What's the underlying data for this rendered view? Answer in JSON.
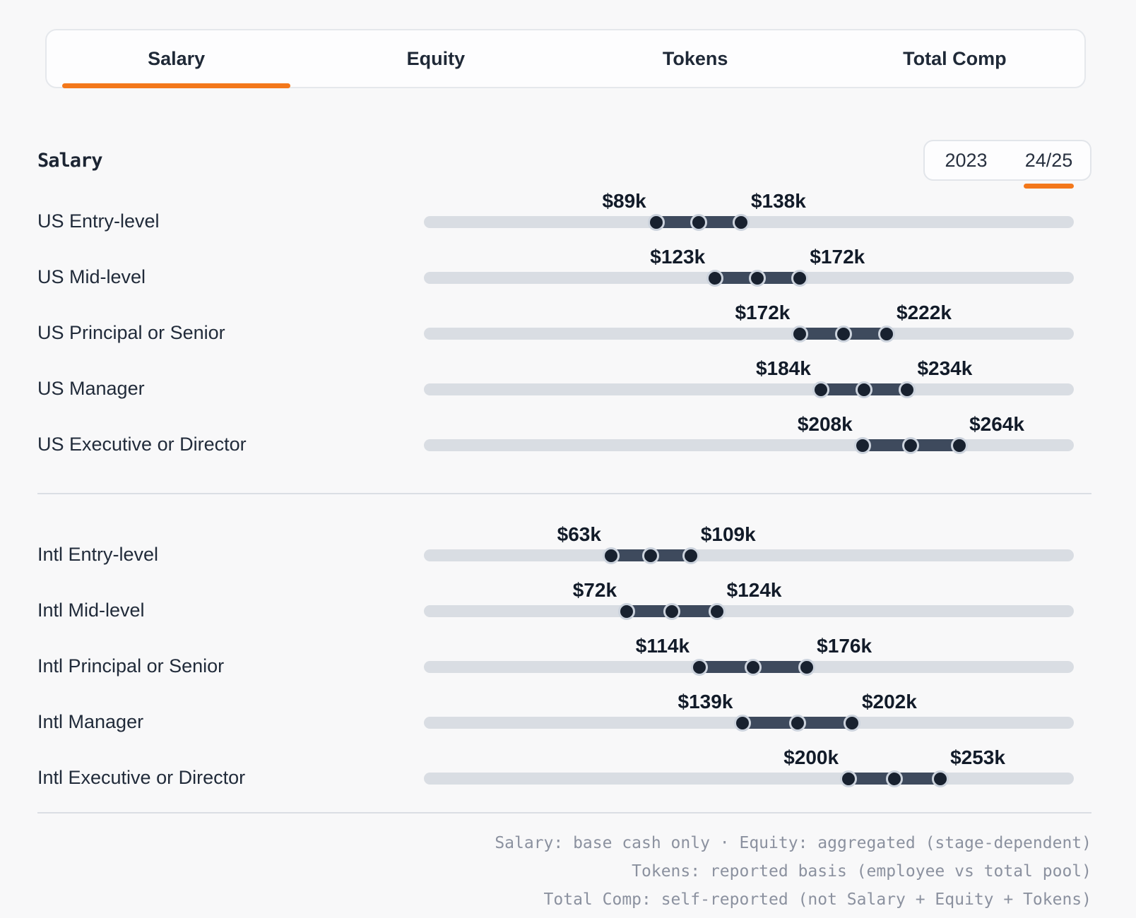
{
  "colors": {
    "accent_orange": "#f3781b",
    "background": "#f8f8f9",
    "bar_track": "#d9dde3",
    "bar_fill": "#3e4a5d",
    "dot_fill": "#18212f",
    "dot_ring": "#ccd3dd",
    "text_dark": "#1c2533",
    "text_muted": "#8b919f"
  },
  "tabs": [
    {
      "label": "Salary",
      "active": true
    },
    {
      "label": "Equity",
      "active": false
    },
    {
      "label": "Tokens",
      "active": false
    },
    {
      "label": "Total Comp",
      "active": false
    }
  ],
  "section": {
    "title": "Salary"
  },
  "year_toggle": {
    "options": [
      "2023",
      "24/25"
    ],
    "active": "24/25"
  },
  "chart_data": {
    "type": "bar",
    "variant": "horizontal-range-dumbbell",
    "title": "Salary",
    "unit": "USD thousands (k)",
    "axis_range": [
      -45,
      330
    ],
    "legend": "dots mark range minimum, midpoint and maximum",
    "grid": false,
    "groups": [
      {
        "name": "US",
        "rows": [
          {
            "label": "US Entry-level",
            "min": 89,
            "max": 138,
            "min_label": "$89k",
            "max_label": "$138k"
          },
          {
            "label": "US Mid-level",
            "min": 123,
            "max": 172,
            "min_label": "$123k",
            "max_label": "$172k"
          },
          {
            "label": "US Principal or Senior",
            "min": 172,
            "max": 222,
            "min_label": "$172k",
            "max_label": "$222k"
          },
          {
            "label": "US Manager",
            "min": 184,
            "max": 234,
            "min_label": "$184k",
            "max_label": "$234k"
          },
          {
            "label": "US Executive or Director",
            "min": 208,
            "max": 264,
            "min_label": "$208k",
            "max_label": "$264k"
          }
        ]
      },
      {
        "name": "Intl",
        "rows": [
          {
            "label": "Intl Entry-level",
            "min": 63,
            "max": 109,
            "min_label": "$63k",
            "max_label": "$109k"
          },
          {
            "label": "Intl Mid-level",
            "min": 72,
            "max": 124,
            "min_label": "$72k",
            "max_label": "$124k"
          },
          {
            "label": "Intl Principal or Senior",
            "min": 114,
            "max": 176,
            "min_label": "$114k",
            "max_label": "$176k"
          },
          {
            "label": "Intl Manager",
            "min": 139,
            "max": 202,
            "min_label": "$139k",
            "max_label": "$202k"
          },
          {
            "label": "Intl Executive or Director",
            "min": 200,
            "max": 253,
            "min_label": "$200k",
            "max_label": "$253k"
          }
        ]
      }
    ]
  },
  "footnotes": [
    "Salary: base cash only · Equity: aggregated (stage-dependent)",
    "Tokens: reported basis (employee vs total pool)",
    "Total Comp: self-reported (not Salary + Equity + Tokens)"
  ]
}
